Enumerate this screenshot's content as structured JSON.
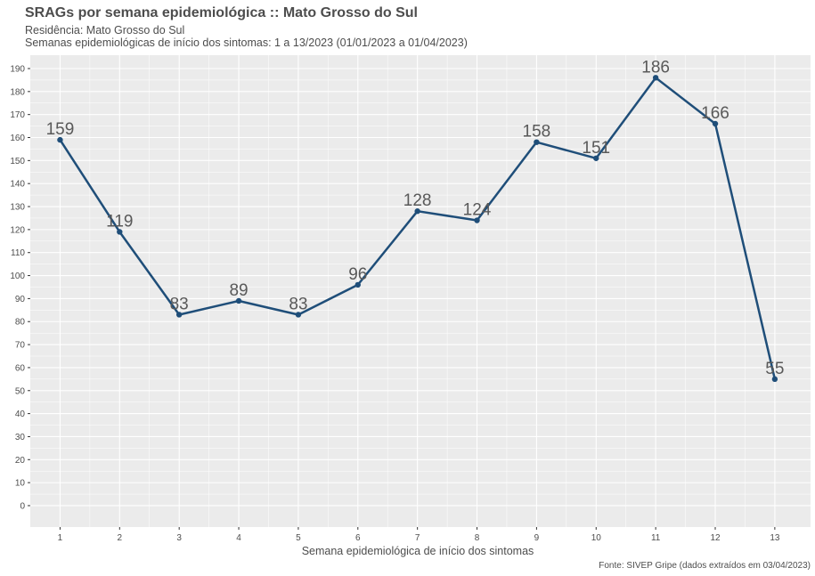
{
  "chart_data": {
    "type": "line",
    "title": "SRAGs por semana epidemiológica :: Mato Grosso do Sul",
    "subtitle_lines": [
      "Residência: Mato Grosso do Sul",
      "Semanas epidemiológicas de início dos sintomas: 1 a 13/2023 (01/01/2023 a 01/04/2023)"
    ],
    "xlabel": "Semana epidemiológica de início dos sintomas",
    "ylabel": "",
    "caption": "Fonte: SIVEP Gripe (dados extraídos em 03/04/2023)",
    "x": [
      1,
      2,
      3,
      4,
      5,
      6,
      7,
      8,
      9,
      10,
      11,
      12,
      13
    ],
    "values": [
      159,
      119,
      83,
      89,
      83,
      96,
      128,
      124,
      158,
      151,
      186,
      166,
      55
    ],
    "xlim": [
      0.5,
      13.6
    ],
    "ylim": [
      -9.3,
      195.8
    ],
    "yticks": [
      0,
      10,
      20,
      30,
      40,
      50,
      60,
      70,
      80,
      90,
      100,
      110,
      120,
      130,
      140,
      150,
      160,
      170,
      180,
      190
    ],
    "grid": true,
    "line_color": "#1f4e79",
    "panel_color": "#ebebeb",
    "grid_color": "#ffffff"
  }
}
